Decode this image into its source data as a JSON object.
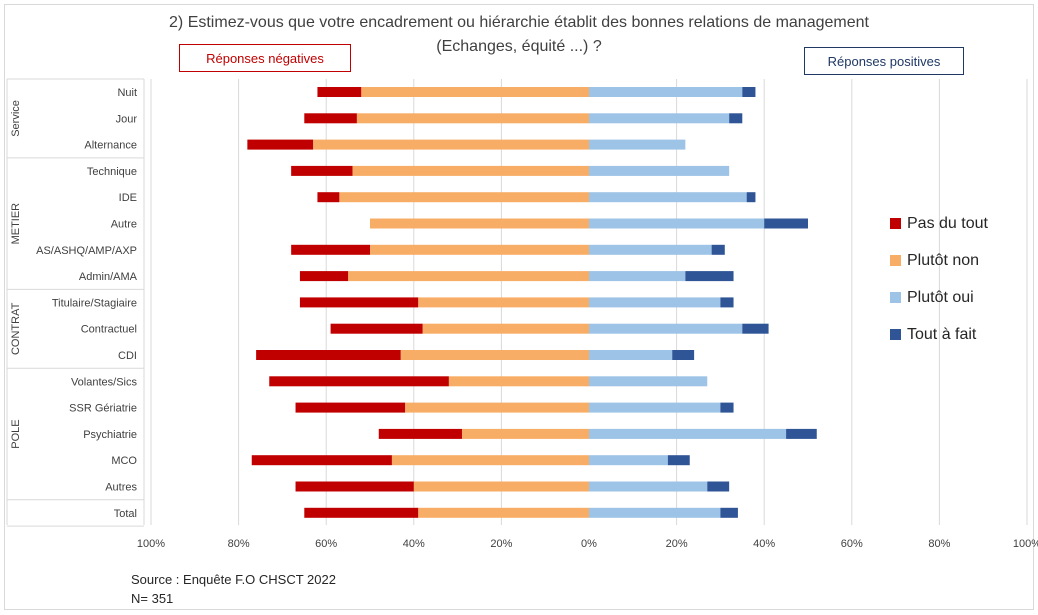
{
  "title_line1": "2) Estimez-vous que votre encadrement ou hiérarchie établit des bonnes relations de management",
  "title_line2": "(Echanges, équité ...) ?",
  "negative_label": "Réponses négatives",
  "positive_label": "Réponses positives",
  "source": "Source : Enquête F.O CHSCT 2022",
  "sample_size": "N= 351",
  "colors": {
    "pas_du_tout": "#c00000",
    "plutot_non": "#f8ad66",
    "plutot_oui": "#9dc3e6",
    "tout_a_fait": "#2f5597"
  },
  "chart_data": {
    "type": "bar",
    "orientation": "horizontal-diverging-stacked",
    "groups": [
      {
        "name": "Service",
        "categories": [
          "Nuit",
          "Jour",
          "Alternance"
        ]
      },
      {
        "name": "METIER",
        "categories": [
          "Technique",
          "IDE",
          "Autre",
          "AS/ASHQ/AMP/AXP",
          "Admin/AMA"
        ]
      },
      {
        "name": "CONTRAT",
        "categories": [
          "Titulaire/Stagiaire",
          "Contractuel",
          "CDI"
        ]
      },
      {
        "name": "POLE",
        "categories": [
          "Volantes/Sics",
          "SSR Gériatrie",
          "Psychiatrie",
          "MCO",
          "Autres"
        ]
      },
      {
        "name": "",
        "categories": [
          "Total"
        ]
      }
    ],
    "categories": [
      "Nuit",
      "Jour",
      "Alternance",
      "Technique",
      "IDE",
      "Autre",
      "AS/ASHQ/AMP/AXP",
      "Admin/AMA",
      "Titulaire/Stagiaire",
      "Contractuel",
      "CDI",
      "Volantes/Sics",
      "SSR Gériatrie",
      "Psychiatrie",
      "MCO",
      "Autres",
      "Total"
    ],
    "series": [
      {
        "name": "Pas du tout",
        "side": "negative",
        "values": [
          10,
          12,
          15,
          14,
          5,
          0,
          18,
          11,
          27,
          21,
          33,
          41,
          25,
          19,
          32,
          27,
          26
        ]
      },
      {
        "name": "Plutôt non",
        "side": "negative",
        "values": [
          52,
          53,
          63,
          54,
          57,
          50,
          50,
          55,
          39,
          38,
          43,
          32,
          42,
          29,
          45,
          40,
          39
        ]
      },
      {
        "name": "Plutôt oui",
        "side": "positive",
        "values": [
          35,
          32,
          22,
          32,
          36,
          40,
          28,
          22,
          30,
          35,
          19,
          27,
          30,
          45,
          18,
          27,
          30
        ]
      },
      {
        "name": "Tout à fait",
        "side": "positive",
        "values": [
          3,
          3,
          0,
          0,
          2,
          10,
          3,
          11,
          3,
          6,
          5,
          0,
          3,
          7,
          5,
          5,
          4
        ]
      }
    ],
    "x_ticks": [
      "100%",
      "80%",
      "60%",
      "40%",
      "20%",
      "0%",
      "20%",
      "40%",
      "60%",
      "80%",
      "100%"
    ],
    "xlim": [
      -100,
      100
    ],
    "grid": true,
    "legend_position": "right"
  }
}
